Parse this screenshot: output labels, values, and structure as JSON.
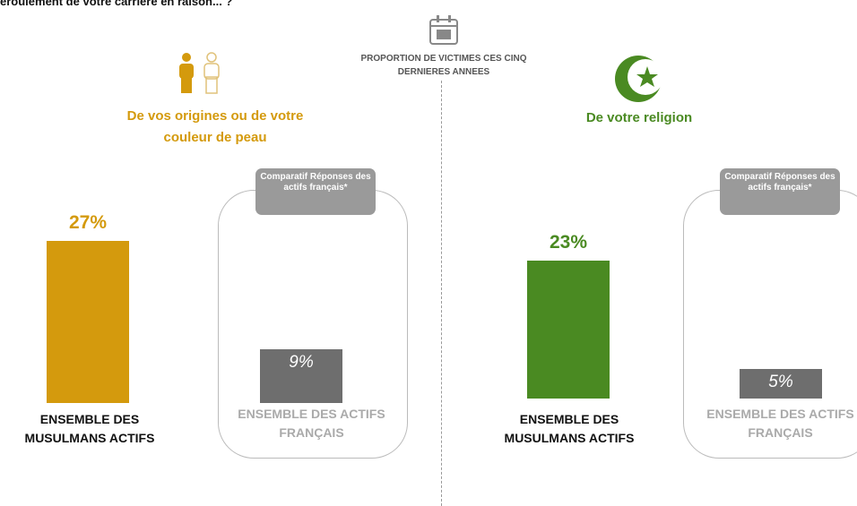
{
  "header": {
    "title": "éroulement de votre carrière en raison... ?",
    "center_label": "PROPORTION DE VICTIMES CES CINQ DERNIERES ANNEES"
  },
  "chart_data": [
    {
      "type": "bar",
      "title": "De vos origines ou de votre couleur de peau",
      "categories": [
        "ENSEMBLE DES MUSULMANS ACTIFS",
        "ENSEMBLE DES ACTIFS FRANÇAIS"
      ],
      "values": [
        27,
        9
      ],
      "value_labels": [
        "27%",
        "9%"
      ],
      "colors": [
        "#d49a0d",
        "#6e6e6e"
      ],
      "comparison_label": "Comparatif Réponses des actifs français*"
    },
    {
      "type": "bar",
      "title": "De votre religion",
      "categories": [
        "ENSEMBLE DES MUSULMANS ACTIFS",
        "ENSEMBLE DES ACTIFS FRANÇAIS"
      ],
      "values": [
        23,
        5
      ],
      "value_labels": [
        "23%",
        "5%"
      ],
      "colors": [
        "#4a8a22",
        "#6e6e6e"
      ],
      "comparison_label": "Comparatif Réponses des actifs français*"
    }
  ]
}
